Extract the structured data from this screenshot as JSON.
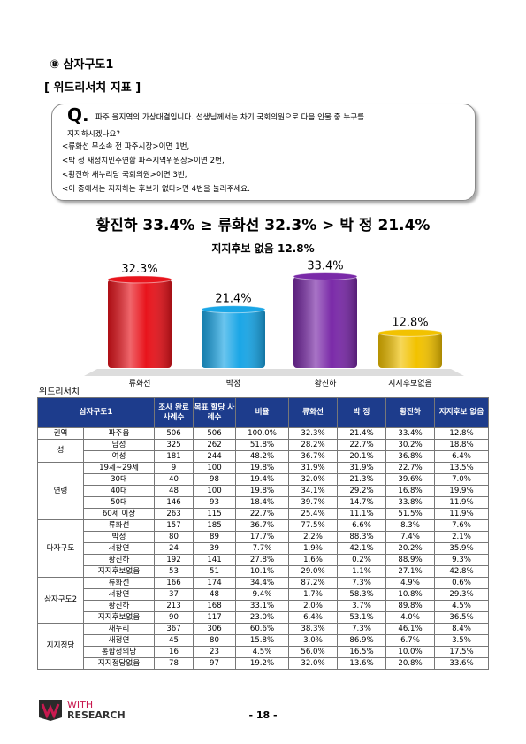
{
  "section": {
    "number": "⑧",
    "title": "삼자구도1"
  },
  "subtitle": "[ 위드리서치 지표 ]",
  "question": {
    "mark": "Q.",
    "lines": [
      "파주 을지역의 가상대결입니다. 선생님께서는 차기 국회의원으로 다음 인물 중 누구를",
      "지지하시겠나요?",
      "<류화선 무소속 전 파주시장>이면 1번,",
      "<박 정 새정치민주연합 파주지역위원장>이면 2번,",
      "<황진하 새누리당 국회의원>이면 3번,",
      "<이 중에서는 지지하는 후보가 없다>면 4번을 눌러주세요."
    ]
  },
  "headline": "황진하 33.4% ≥ 류화선 32.3% > 박 정 21.4%",
  "subheadline": "지지후보 없음 12.8%",
  "chart_data": {
    "type": "bar",
    "categories": [
      "류화선",
      "박정",
      "황진하",
      "지지후보없음"
    ],
    "values": [
      32.3,
      21.4,
      33.4,
      12.8
    ],
    "value_labels": [
      "32.3%",
      "21.4%",
      "33.4%",
      "12.8%"
    ],
    "colors": [
      "#e8141c",
      "#1aa6e6",
      "#7a2aa8",
      "#f2c200"
    ]
  },
  "table": {
    "caption": "위드리서치",
    "header": [
      "삼자구도1",
      "조사 완료 사례수",
      "목표 할당 사례수",
      "비율",
      "류화선",
      "박 정",
      "황진하",
      "지지후보 없음"
    ],
    "groups": [
      {
        "label": "권역",
        "rows": [
          [
            "파주읍",
            "506",
            "506",
            "100.0%",
            "32.3%",
            "21.4%",
            "33.4%",
            "12.8%"
          ]
        ]
      },
      {
        "label": "성",
        "rows": [
          [
            "남성",
            "325",
            "262",
            "51.8%",
            "28.2%",
            "22.7%",
            "30.2%",
            "18.8%"
          ],
          [
            "여성",
            "181",
            "244",
            "48.2%",
            "36.7%",
            "20.1%",
            "36.8%",
            "6.4%"
          ]
        ]
      },
      {
        "label": "연령",
        "rows": [
          [
            "19세~29세",
            "9",
            "100",
            "19.8%",
            "31.9%",
            "31.9%",
            "22.7%",
            "13.5%"
          ],
          [
            "30대",
            "40",
            "98",
            "19.4%",
            "32.0%",
            "21.3%",
            "39.6%",
            "7.0%"
          ],
          [
            "40대",
            "48",
            "100",
            "19.8%",
            "34.1%",
            "29.2%",
            "16.8%",
            "19.9%"
          ],
          [
            "50대",
            "146",
            "93",
            "18.4%",
            "39.7%",
            "14.7%",
            "33.8%",
            "11.9%"
          ],
          [
            "60세 이상",
            "263",
            "115",
            "22.7%",
            "25.4%",
            "11.1%",
            "51.5%",
            "11.9%"
          ]
        ]
      },
      {
        "label": "다자구도",
        "rows": [
          [
            "류화선",
            "157",
            "185",
            "36.7%",
            "77.5%",
            "6.6%",
            "8.3%",
            "7.6%"
          ],
          [
            "박정",
            "80",
            "89",
            "17.7%",
            "2.2%",
            "88.3%",
            "7.4%",
            "2.1%"
          ],
          [
            "서창연",
            "24",
            "39",
            "7.7%",
            "1.9%",
            "42.1%",
            "20.2%",
            "35.9%"
          ],
          [
            "황진하",
            "192",
            "141",
            "27.8%",
            "1.6%",
            "0.2%",
            "88.9%",
            "9.3%"
          ],
          [
            "지지후보없음",
            "53",
            "51",
            "10.1%",
            "29.0%",
            "1.1%",
            "27.1%",
            "42.8%"
          ]
        ]
      },
      {
        "label": "삼자구도2",
        "rows": [
          [
            "류화선",
            "166",
            "174",
            "34.4%",
            "87.2%",
            "7.3%",
            "4.9%",
            "0.6%"
          ],
          [
            "서창연",
            "37",
            "48",
            "9.4%",
            "1.7%",
            "58.3%",
            "10.8%",
            "29.3%"
          ],
          [
            "황진하",
            "213",
            "168",
            "33.1%",
            "2.0%",
            "3.7%",
            "89.8%",
            "4.5%"
          ],
          [
            "지지후보없음",
            "90",
            "117",
            "23.0%",
            "6.4%",
            "53.1%",
            "4.0%",
            "36.5%"
          ]
        ]
      },
      {
        "label": "지지정당",
        "rows": [
          [
            "새누리",
            "367",
            "306",
            "60.6%",
            "38.3%",
            "7.3%",
            "46.1%",
            "8.4%"
          ],
          [
            "새정연",
            "45",
            "80",
            "15.8%",
            "3.0%",
            "86.9%",
            "6.7%",
            "3.5%"
          ],
          [
            "통합정의당",
            "16",
            "23",
            "4.5%",
            "56.0%",
            "16.5%",
            "10.0%",
            "17.5%"
          ],
          [
            "지지정당없음",
            "78",
            "97",
            "19.2%",
            "32.0%",
            "13.6%",
            "20.8%",
            "33.6%"
          ]
        ]
      }
    ]
  },
  "footer": {
    "logo_top": "WITH",
    "logo_bottom": "RESEARCH",
    "page": "- 18 -"
  }
}
